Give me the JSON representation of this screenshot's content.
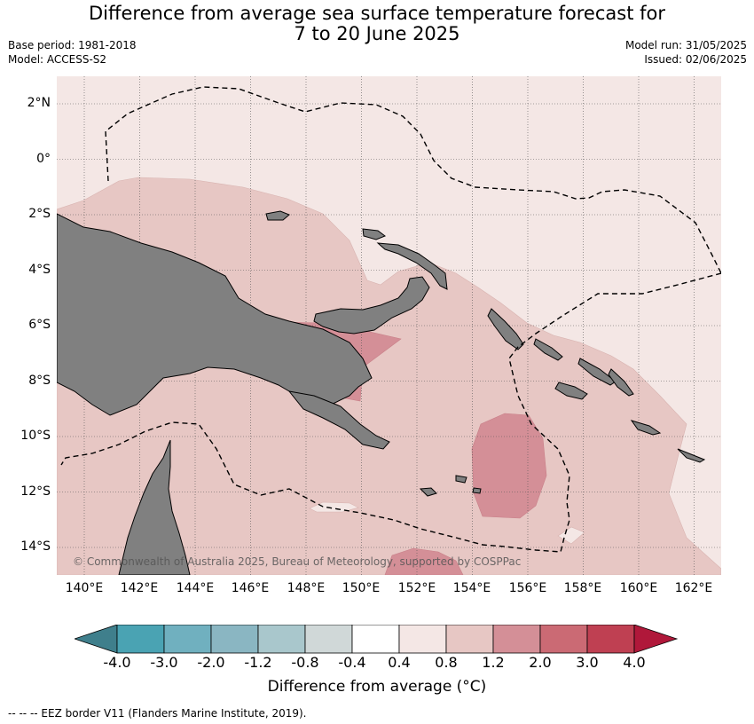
{
  "title": {
    "line1": "Difference from average sea surface temperature forecast for",
    "line2": "7 to 20 June 2025"
  },
  "meta": {
    "base_period": "Base period: 1981-2018",
    "model": "Model: ACCESS-S2",
    "model_run": "Model run: 31/05/2025",
    "issued": "Issued: 02/06/2025"
  },
  "map": {
    "lat_labels": [
      "2°N",
      "0°",
      "2°S",
      "4°S",
      "6°S",
      "8°S",
      "10°S",
      "12°S",
      "14°S"
    ],
    "lon_labels": [
      "140°E",
      "142°E",
      "144°E",
      "146°E",
      "148°E",
      "150°E",
      "152°E",
      "154°E",
      "156°E",
      "158°E",
      "160°E",
      "162°E"
    ],
    "copyright": "© Commonwealth of Australia 2025, Bureau of Meteorology, supported by COSPPac",
    "colors": {
      "land": "#808080",
      "bg_anomaly": "#f4e7e5",
      "mid_anomaly": "#e7c7c4",
      "high_anomaly": "#d48f97",
      "eez_line": "#000000"
    }
  },
  "colorbar": {
    "ticks": [
      "-4.0",
      "-3.0",
      "-2.0",
      "-1.2",
      "-0.8",
      "-0.4",
      "0.4",
      "0.8",
      "1.2",
      "2.0",
      "3.0",
      "4.0"
    ],
    "colors": [
      "#3f7f8c",
      "#4aa3b3",
      "#70b0bf",
      "#8ab6c2",
      "#a9c7cc",
      "#d0d8d8",
      "#ffffff",
      "#f4e7e5",
      "#e7c7c4",
      "#d48f97",
      "#cb6a74",
      "#bf4052",
      "#b0183a"
    ],
    "label": "Difference from average (°C)"
  },
  "footer": "--  --  -- EEZ border V11 (Flanders Marine Institute, 2019)."
}
